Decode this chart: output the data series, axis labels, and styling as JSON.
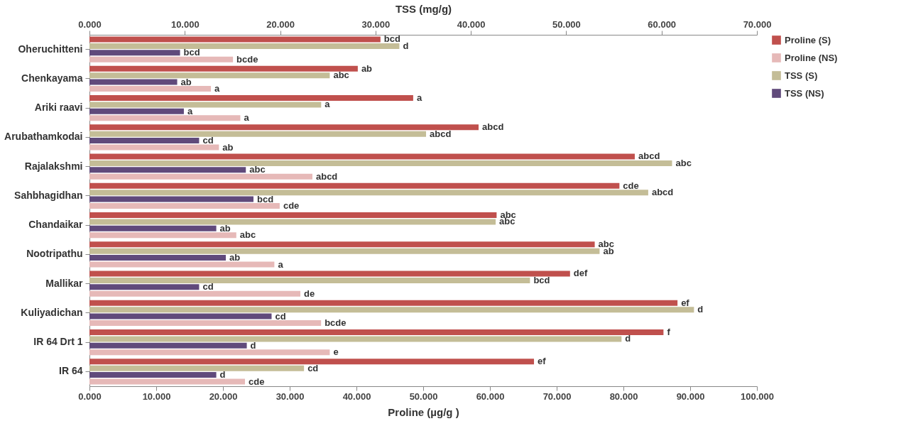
{
  "chart_data": {
    "type": "bar",
    "orientation": "horizontal",
    "categories": [
      "Oheruchitteni",
      "Chenkayama",
      "Ariki raavi",
      "Arubathamkodai",
      "Rajalakshmi",
      "Sahbhagidhan",
      "Chandaikar",
      "Nootripathu",
      "Mallikar",
      "Kuliyadichan",
      "IR 64 Drt 1",
      "IR 64"
    ],
    "series": [
      {
        "name": "Proline (S)",
        "color": "#c0504d",
        "values": [
          43.6,
          40.2,
          48.5,
          58.3,
          81.7,
          79.4,
          61.0,
          75.7,
          72.0,
          88.1,
          86.0,
          66.6
        ],
        "value_labels": [
          "bcd",
          "ab",
          "a",
          "abcd",
          "abcd",
          "cde",
          "abc",
          "abc",
          "def",
          "ef",
          "f",
          "ef"
        ]
      },
      {
        "name": "Proline (NS)",
        "color": "#e6b9b8",
        "values": [
          21.5,
          18.2,
          22.6,
          19.4,
          33.4,
          28.5,
          22.0,
          27.7,
          31.6,
          34.7,
          36.0,
          23.3
        ],
        "value_labels": [
          "bcde",
          "a",
          "a",
          "ab",
          "abcd",
          "cde",
          "abc",
          "a",
          "de",
          "bcde",
          "e",
          "cde"
        ]
      },
      {
        "name": "TSS (S)",
        "color": "#c4bd97",
        "axis": "x2",
        "values": [
          32.5,
          25.2,
          24.3,
          35.3,
          61.1,
          58.6,
          42.6,
          53.5,
          46.2,
          63.4,
          55.8,
          22.5
        ],
        "value_labels": [
          "d",
          "abc",
          "a",
          "abcd",
          "abc",
          "abcd",
          "abc",
          "ab",
          "bcd",
          "d",
          "d",
          "cd"
        ]
      },
      {
        "name": "TSS (NS)",
        "color": "#604a7b",
        "axis": "x2",
        "values": [
          9.5,
          9.2,
          9.9,
          11.5,
          16.4,
          17.2,
          13.3,
          14.3,
          11.5,
          19.1,
          16.5,
          13.3
        ],
        "value_labels": [
          "bcd",
          "ab",
          "a",
          "cd",
          "abc",
          "bcd",
          "ab",
          "ab",
          "cd",
          "cd",
          "d",
          "d"
        ]
      }
    ],
    "xlabel": "Proline (µg/g )",
    "x2label": "TSS (mg/g)",
    "xlim": [
      0,
      100
    ],
    "xticks": [
      {
        "value": 0,
        "label": "0.000"
      },
      {
        "value": 10,
        "label": "10.000"
      },
      {
        "value": 20,
        "label": "20.000"
      },
      {
        "value": 30,
        "label": "30.000"
      },
      {
        "value": 40,
        "label": "40.000"
      },
      {
        "value": 50,
        "label": "50.000"
      },
      {
        "value": 60,
        "label": "60.000"
      },
      {
        "value": 70,
        "label": "70.000"
      },
      {
        "value": 80,
        "label": "80.000"
      },
      {
        "value": 90,
        "label": "90.000"
      },
      {
        "value": 100,
        "label": "100.000"
      }
    ],
    "x2lim": [
      0,
      70
    ],
    "x2ticks": [
      {
        "value": 0,
        "label": "0.000"
      },
      {
        "value": 10,
        "label": "10.000"
      },
      {
        "value": 20,
        "label": "20.000"
      },
      {
        "value": 30,
        "label": "30.000"
      },
      {
        "value": 40,
        "label": "40.000"
      },
      {
        "value": 50,
        "label": "50.000"
      },
      {
        "value": 60,
        "label": "60.000"
      },
      {
        "value": 70,
        "label": "70.000"
      }
    ],
    "legend": "right",
    "grid": false
  }
}
